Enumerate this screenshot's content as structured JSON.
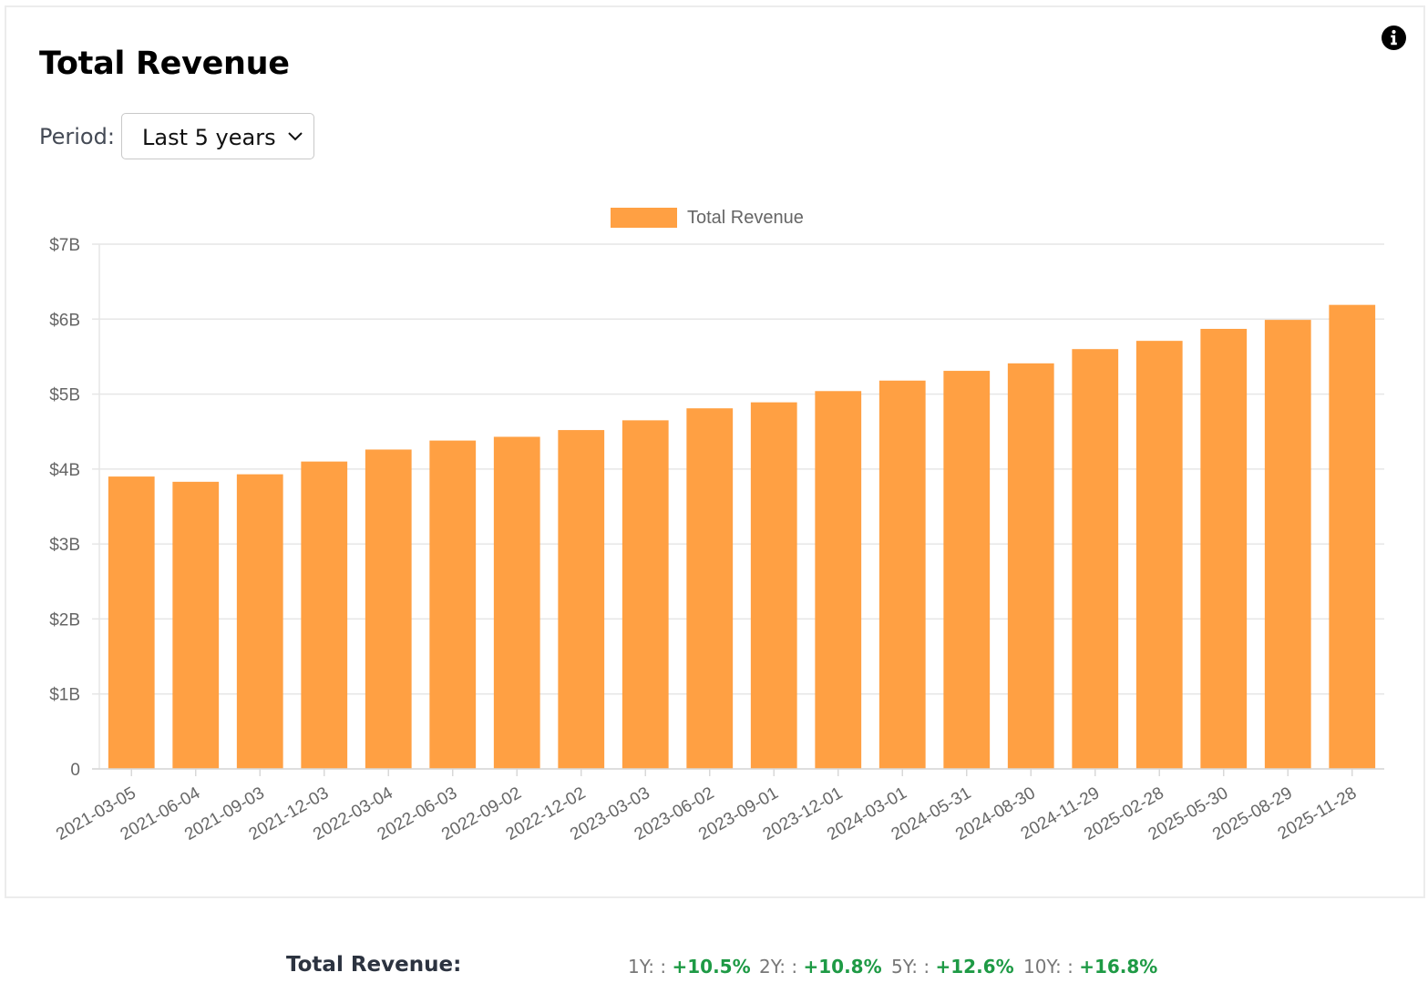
{
  "header": {
    "title": "Total Revenue",
    "info_icon": "info-circle-icon"
  },
  "period": {
    "label": "Period:",
    "selected": "Last 5 years",
    "icon": "chevron-down-icon"
  },
  "chart_data": {
    "type": "bar",
    "legend": {
      "label": "Total Revenue",
      "placement": "top-center"
    },
    "categories": [
      "2021-03-05",
      "2021-06-04",
      "2021-09-03",
      "2021-12-03",
      "2022-03-04",
      "2022-06-03",
      "2022-09-02",
      "2022-12-02",
      "2023-03-03",
      "2023-06-02",
      "2023-09-01",
      "2023-12-01",
      "2024-03-01",
      "2024-05-31",
      "2024-08-30",
      "2024-11-29",
      "2025-02-28",
      "2025-05-30",
      "2025-08-29",
      "2025-11-28"
    ],
    "series": [
      {
        "name": "Total Revenue",
        "color": "#ffa043",
        "values": [
          3.9,
          3.83,
          3.93,
          4.1,
          4.26,
          4.38,
          4.43,
          4.52,
          4.65,
          4.81,
          4.89,
          5.04,
          5.18,
          5.31,
          5.41,
          5.6,
          5.71,
          5.87,
          5.99,
          6.19
        ]
      }
    ],
    "y_unit": "billions USD",
    "ylim": [
      0,
      7
    ],
    "y_ticks": [
      "0",
      "$1B",
      "$2B",
      "$3B",
      "$4B",
      "$5B",
      "$6B",
      "$7B"
    ],
    "grid": true,
    "xlabel": "",
    "ylabel": ""
  },
  "summary": {
    "label": "Total Revenue:",
    "stats": [
      {
        "key": "1Y: :",
        "value": "+10.5%"
      },
      {
        "key": "2Y: :",
        "value": "+10.8%"
      },
      {
        "key": "5Y: :",
        "value": "+12.6%"
      },
      {
        "key": "10Y: :",
        "value": "+16.8%"
      }
    ]
  }
}
